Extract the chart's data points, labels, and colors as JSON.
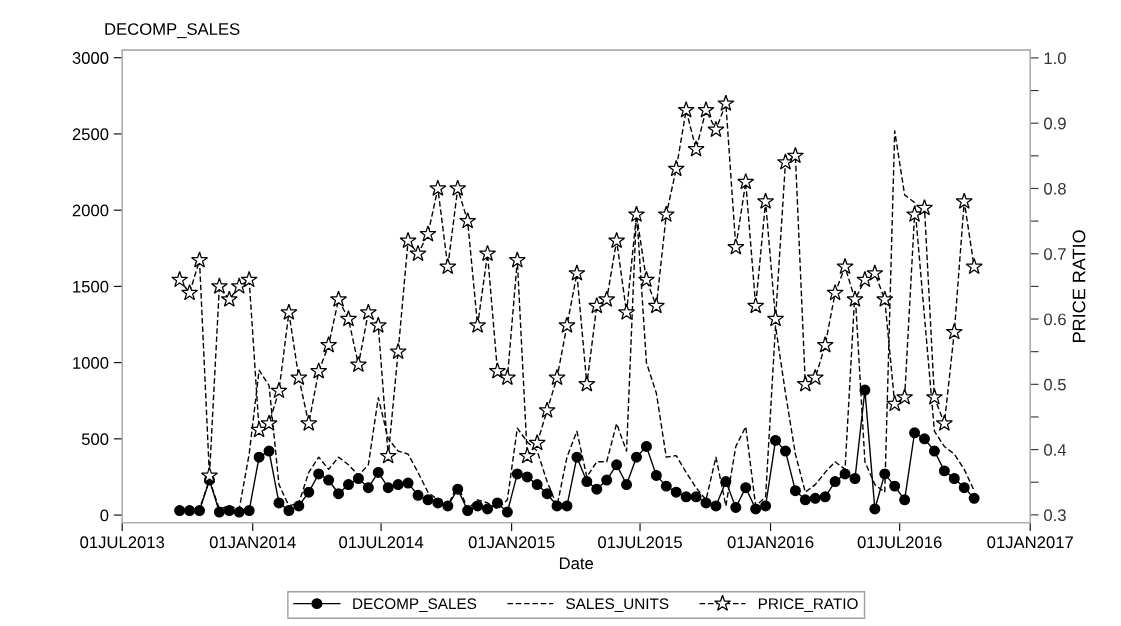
{
  "chart_data": {
    "type": "line",
    "ylabel": "DECOMP_SALES",
    "xlabel": "Date",
    "y2label": "PRICE RATIO",
    "x": [
      "2013-09-20",
      "2013-10-04",
      "2013-10-18",
      "2013-11-01",
      "2013-11-15",
      "2013-11-29",
      "2013-12-13",
      "2013-12-27",
      "2014-01-10",
      "2014-01-24",
      "2014-02-07",
      "2014-02-21",
      "2014-03-07",
      "2014-03-21",
      "2014-04-04",
      "2014-04-18",
      "2014-05-02",
      "2014-05-16",
      "2014-05-30",
      "2014-06-13",
      "2014-06-27",
      "2014-07-11",
      "2014-07-25",
      "2014-08-08",
      "2014-08-22",
      "2014-09-05",
      "2014-09-19",
      "2014-10-03",
      "2014-10-17",
      "2014-10-31",
      "2014-11-14",
      "2014-11-28",
      "2014-12-12",
      "2014-12-26",
      "2015-01-09",
      "2015-01-23",
      "2015-02-06",
      "2015-02-20",
      "2015-03-06",
      "2015-03-20",
      "2015-04-03",
      "2015-04-17",
      "2015-05-01",
      "2015-05-15",
      "2015-05-29",
      "2015-06-12",
      "2015-06-26",
      "2015-07-10",
      "2015-07-24",
      "2015-08-07",
      "2015-08-21",
      "2015-09-04",
      "2015-09-18",
      "2015-10-02",
      "2015-10-16",
      "2015-10-30",
      "2015-11-13",
      "2015-11-27",
      "2015-12-11",
      "2015-12-25",
      "2016-01-08",
      "2016-01-22",
      "2016-02-05",
      "2016-02-19",
      "2016-03-04",
      "2016-03-18",
      "2016-04-01",
      "2016-04-15",
      "2016-04-29",
      "2016-05-13",
      "2016-05-27",
      "2016-06-10",
      "2016-06-24",
      "2016-07-08",
      "2016-07-22",
      "2016-08-05",
      "2016-08-19",
      "2016-09-02",
      "2016-09-16",
      "2016-09-30",
      "2016-10-14"
    ],
    "xlim": [
      "2013-07-01",
      "2017-01-01"
    ],
    "xticks": [
      {
        "value": "2013-07-01",
        "label": "01JUL2013"
      },
      {
        "value": "2014-01-01",
        "label": "01JAN2014"
      },
      {
        "value": "2014-07-01",
        "label": "01JUL2014"
      },
      {
        "value": "2015-01-01",
        "label": "01JAN2015"
      },
      {
        "value": "2015-07-01",
        "label": "01JUL2015"
      },
      {
        "value": "2016-01-01",
        "label": "01JAN2016"
      },
      {
        "value": "2016-07-01",
        "label": "01JUL2016"
      },
      {
        "value": "2017-01-01",
        "label": "01JAN2017"
      }
    ],
    "ylim": [
      -50,
      3050
    ],
    "yticks": [
      0,
      500,
      1000,
      1500,
      2000,
      2500,
      3000
    ],
    "y2lim": [
      0.288,
      1.012
    ],
    "y2ticks": [
      {
        "value": 0.3,
        "label": "0.3"
      },
      {
        "value": 0.35,
        "label": null
      },
      {
        "value": 0.4,
        "label": "0.4"
      },
      {
        "value": 0.45,
        "label": null
      },
      {
        "value": 0.5,
        "label": "0.5"
      },
      {
        "value": 0.55,
        "label": null
      },
      {
        "value": 0.6,
        "label": "0.6"
      },
      {
        "value": 0.65,
        "label": null
      },
      {
        "value": 0.7,
        "label": "0.7"
      },
      {
        "value": 0.75,
        "label": null
      },
      {
        "value": 0.8,
        "label": "0.8"
      },
      {
        "value": 0.85,
        "label": null
      },
      {
        "value": 0.9,
        "label": "0.9"
      },
      {
        "value": 0.95,
        "label": null
      },
      {
        "value": 1.0,
        "label": "1.0"
      }
    ],
    "grid": false,
    "legend": "bottom",
    "series": [
      {
        "name": "DECOMP_SALES",
        "color": "#000000",
        "marker": "circle",
        "line_style": "solid",
        "values": [
          30,
          30,
          30,
          230,
          20,
          30,
          20,
          30,
          380,
          420,
          80,
          30,
          60,
          150,
          270,
          230,
          140,
          200,
          240,
          180,
          280,
          180,
          200,
          210,
          130,
          100,
          80,
          60,
          170,
          30,
          60,
          40,
          80,
          20,
          270,
          250,
          200,
          140,
          60,
          60,
          380,
          220,
          170,
          230,
          330,
          200,
          380,
          450,
          260,
          190,
          150,
          120,
          120,
          80,
          60,
          220,
          50,
          180,
          40,
          60,
          490,
          420,
          160,
          100,
          110,
          120,
          220,
          270,
          240,
          820,
          40,
          270,
          190,
          100,
          540,
          500,
          420,
          290,
          240,
          180,
          110
        ]
      },
      {
        "name": "SALES_UNITS",
        "color": "#000000",
        "marker": "none",
        "line_style": "dashed",
        "values": [
          40,
          30,
          40,
          230,
          40,
          60,
          40,
          400,
          950,
          850,
          200,
          60,
          80,
          280,
          380,
          300,
          380,
          330,
          260,
          330,
          770,
          500,
          420,
          400,
          280,
          150,
          100,
          60,
          200,
          40,
          100,
          80,
          40,
          100,
          570,
          480,
          420,
          220,
          60,
          380,
          550,
          250,
          350,
          350,
          600,
          420,
          2000,
          1000,
          800,
          380,
          390,
          280,
          180,
          100,
          380,
          60,
          450,
          580,
          60,
          120,
          1240,
          800,
          400,
          150,
          200,
          280,
          350,
          300,
          1470,
          350,
          200,
          150,
          2520,
          2100,
          2050,
          1300,
          550,
          450,
          400,
          300,
          160
        ]
      },
      {
        "name": "PRICE_RATIO",
        "color": "#000000",
        "marker": "star",
        "line_style": "dashed",
        "axis": "y2",
        "values": [
          0.66,
          0.64,
          0.69,
          0.36,
          0.65,
          0.63,
          0.65,
          0.66,
          0.43,
          0.44,
          0.49,
          0.61,
          0.51,
          0.44,
          0.52,
          0.56,
          0.63,
          0.6,
          0.53,
          0.61,
          0.59,
          0.39,
          0.55,
          0.72,
          0.7,
          0.73,
          0.8,
          0.68,
          0.8,
          0.75,
          0.59,
          0.7,
          0.52,
          0.51,
          0.69,
          0.39,
          0.41,
          0.46,
          0.51,
          0.59,
          0.67,
          0.5,
          0.62,
          0.63,
          0.72,
          0.61,
          0.76,
          0.66,
          0.62,
          0.76,
          0.83,
          0.92,
          0.86,
          0.92,
          0.89,
          0.93,
          0.71,
          0.81,
          0.62,
          0.78,
          0.6,
          0.84,
          0.85,
          0.5,
          0.51,
          0.56,
          0.64,
          0.68,
          0.63,
          0.66,
          0.67,
          0.63,
          0.47,
          0.48,
          0.76,
          0.77,
          0.48,
          0.44,
          0.58,
          0.78,
          0.68
        ]
      }
    ]
  }
}
